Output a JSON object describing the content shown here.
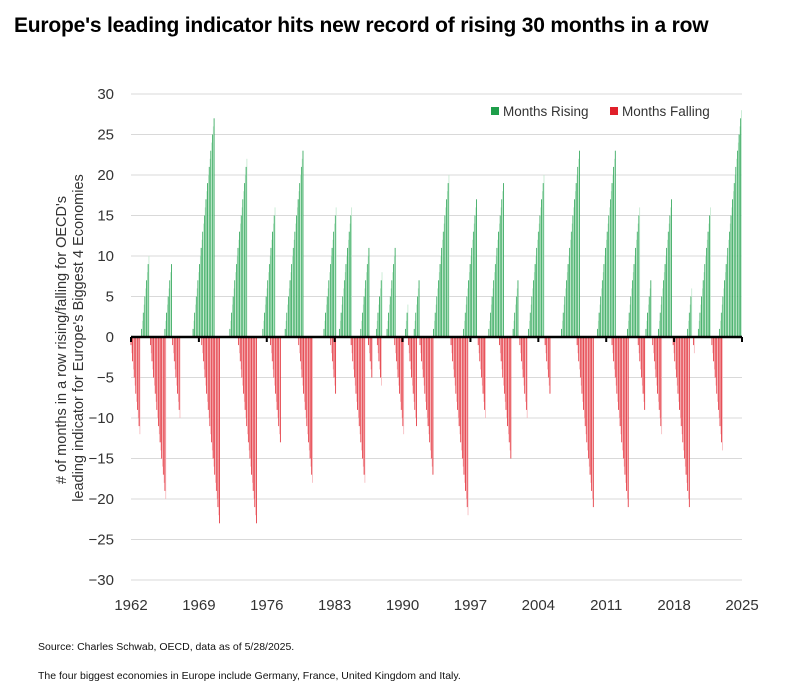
{
  "title": "Europe's leading indicator hits new record of rising 30 months in a row",
  "source": "Source: Charles Schwab, OECD, data as of 5/28/2025.",
  "footnote": "The four biggest economies in Europe include Germany, France, United Kingdom and Italy.",
  "chart_data": {
    "type": "bar",
    "ylabel_lines": [
      "# of months in a row rising/falling for OECD's",
      "leading indicator for Europe's Biggest 4 Economies"
    ],
    "ylim": [
      -30,
      30
    ],
    "yticks": [
      30,
      25,
      20,
      15,
      10,
      5,
      0,
      -5,
      -10,
      -15,
      -20,
      -25,
      -30
    ],
    "xlim": [
      1962,
      2025
    ],
    "xticks": [
      1962,
      1969,
      1976,
      1983,
      1990,
      1997,
      2004,
      2011,
      2018,
      2025
    ],
    "grid": true,
    "legend_position": "top-right",
    "colors": {
      "rising": "#1e9e4a",
      "falling": "#e0202a",
      "rising_light": "#bfe8cc",
      "falling_light": "#f6b4b8"
    },
    "series": [
      {
        "name": "Months Rising",
        "color": "#1e9e4a",
        "runs": [
          {
            "start": 1963.1,
            "peak": 10
          },
          {
            "start": 1965.5,
            "peak": 9
          },
          {
            "start": 1968.4,
            "peak": 27
          },
          {
            "start": 1972.2,
            "peak": 22
          },
          {
            "start": 1975.6,
            "peak": 16
          },
          {
            "start": 1977.9,
            "peak": 23
          },
          {
            "start": 1981.9,
            "peak": 16
          },
          {
            "start": 1983.5,
            "peak": 16
          },
          {
            "start": 1985.7,
            "peak": 11
          },
          {
            "start": 1987.3,
            "peak": 8
          },
          {
            "start": 1988.4,
            "peak": 11
          },
          {
            "start": 1990.3,
            "peak": 4
          },
          {
            "start": 1991.2,
            "peak": 7
          },
          {
            "start": 1993.2,
            "peak": 20
          },
          {
            "start": 1996.3,
            "peak": 17
          },
          {
            "start": 1998.9,
            "peak": 19
          },
          {
            "start": 2001.4,
            "peak": 7
          },
          {
            "start": 2003.0,
            "peak": 20
          },
          {
            "start": 2006.4,
            "peak": 23
          },
          {
            "start": 2010.1,
            "peak": 23
          },
          {
            "start": 2013.2,
            "peak": 16
          },
          {
            "start": 2015.1,
            "peak": 7
          },
          {
            "start": 2016.4,
            "peak": 17
          },
          {
            "start": 2019.4,
            "peak": 6
          },
          {
            "start": 2020.5,
            "peak": 16
          },
          {
            "start": 2022.7,
            "peak": 30
          }
        ]
      },
      {
        "name": "Months Falling",
        "color": "#e0202a",
        "runs": [
          {
            "start": 1962.0,
            "peak": -12
          },
          {
            "start": 1964.0,
            "peak": -20
          },
          {
            "start": 1966.3,
            "peak": -10
          },
          {
            "start": 1969.3,
            "peak": -23
          },
          {
            "start": 1973.1,
            "peak": -23
          },
          {
            "start": 1976.4,
            "peak": -13
          },
          {
            "start": 1979.3,
            "peak": -18
          },
          {
            "start": 1982.6,
            "peak": -7
          },
          {
            "start": 1984.7,
            "peak": -18
          },
          {
            "start": 1986.5,
            "peak": -5
          },
          {
            "start": 1987.4,
            "peak": -6
          },
          {
            "start": 1989.2,
            "peak": -12
          },
          {
            "start": 1990.6,
            "peak": -11
          },
          {
            "start": 1991.8,
            "peak": -17
          },
          {
            "start": 1995.0,
            "peak": -22
          },
          {
            "start": 1997.8,
            "peak": -10
          },
          {
            "start": 2000.0,
            "peak": -15
          },
          {
            "start": 2002.1,
            "peak": -10
          },
          {
            "start": 2004.7,
            "peak": -7
          },
          {
            "start": 2008.0,
            "peak": -21
          },
          {
            "start": 2011.6,
            "peak": -21
          },
          {
            "start": 2014.3,
            "peak": -9
          },
          {
            "start": 2015.8,
            "peak": -12
          },
          {
            "start": 2017.9,
            "peak": -21
          },
          {
            "start": 2020.0,
            "peak": -2
          },
          {
            "start": 2021.9,
            "peak": -14
          }
        ]
      }
    ]
  }
}
